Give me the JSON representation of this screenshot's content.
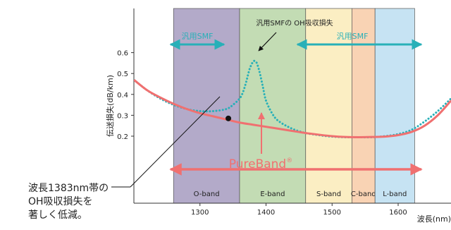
{
  "chart_data": {
    "type": "line",
    "xlabel": "波長(nm)",
    "ylabel": "伝送損失(dB/km)",
    "xlim": [
      1200,
      1680
    ],
    "ylim": [
      0,
      0.65
    ],
    "x_ticks": [
      1300,
      1400,
      1500,
      1600
    ],
    "y_ticks": [
      0.2,
      0.3,
      0.4,
      0.5,
      0.6
    ],
    "bands": [
      {
        "name": "O-band",
        "x0": 1260,
        "x1": 1360,
        "color": "#b3aac9"
      },
      {
        "name": "E-band",
        "x0": 1360,
        "x1": 1460,
        "color": "#c3dcb4"
      },
      {
        "name": "S-band",
        "x0": 1460,
        "x1": 1530,
        "color": "#fbeec3"
      },
      {
        "name": "C-band",
        "x0": 1530,
        "x1": 1565,
        "color": "#f9d3b4"
      },
      {
        "name": "L-band",
        "x0": 1565,
        "x1": 1625,
        "color": "#c6e3f3"
      }
    ],
    "series": [
      {
        "name": "汎用SMF",
        "style": "dotted",
        "color": "#28b0b8",
        "x": [
          1200,
          1220,
          1240,
          1260,
          1280,
          1300,
          1320,
          1340,
          1350,
          1360,
          1365,
          1370,
          1375,
          1380,
          1383,
          1386,
          1390,
          1395,
          1400,
          1410,
          1420,
          1440,
          1460,
          1480,
          1500,
          1520,
          1540,
          1560,
          1580,
          1600,
          1620,
          1640,
          1660,
          1680
        ],
        "values": [
          0.47,
          0.42,
          0.38,
          0.35,
          0.33,
          0.32,
          0.32,
          0.33,
          0.35,
          0.38,
          0.41,
          0.46,
          0.52,
          0.555,
          0.56,
          0.55,
          0.51,
          0.44,
          0.37,
          0.305,
          0.27,
          0.235,
          0.215,
          0.205,
          0.198,
          0.195,
          0.195,
          0.195,
          0.2,
          0.21,
          0.23,
          0.27,
          0.32,
          0.38
        ]
      },
      {
        "name": "PureBand",
        "style": "solid",
        "color": "#f07070",
        "x": [
          1200,
          1220,
          1240,
          1260,
          1280,
          1300,
          1320,
          1340,
          1360,
          1380,
          1400,
          1420,
          1440,
          1460,
          1480,
          1500,
          1520,
          1540,
          1560,
          1580,
          1600,
          1620,
          1640,
          1660,
          1680
        ],
        "values": [
          0.47,
          0.42,
          0.385,
          0.355,
          0.33,
          0.31,
          0.295,
          0.28,
          0.265,
          0.255,
          0.245,
          0.235,
          0.225,
          0.215,
          0.207,
          0.2,
          0.196,
          0.195,
          0.196,
          0.198,
          0.205,
          0.22,
          0.25,
          0.3,
          0.37
        ]
      }
    ],
    "highlight_point": {
      "x": 1343,
      "y": 0.285
    }
  },
  "annotations": {
    "smf_left": "汎用SMF",
    "smf_right": "汎用SMF",
    "oh_peak": "汎用SMFの OH吸収損失",
    "pureband": "PureBand",
    "pureband_mark": "®",
    "note_lines": [
      "波長1383nm帯の",
      "OH吸収損失を",
      "著しく低減。"
    ]
  }
}
